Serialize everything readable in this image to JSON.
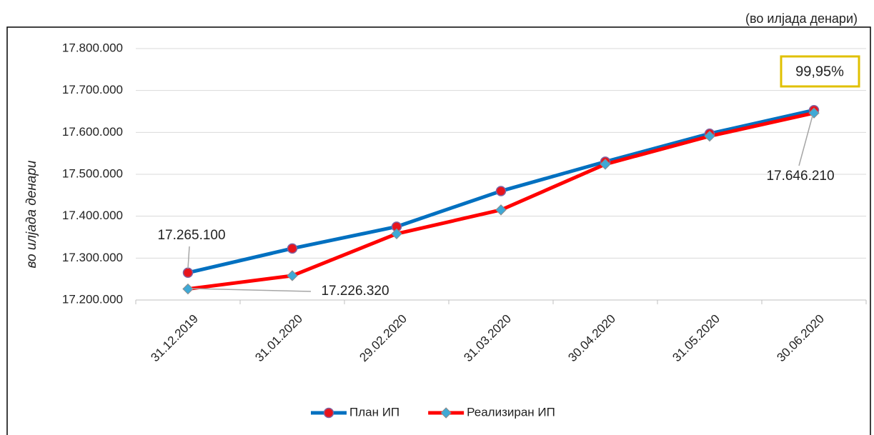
{
  "chart_data": {
    "type": "line",
    "unit_note": "(во илјада денари)",
    "y_axis_label": "во илјада денари",
    "annotation": "99,95%",
    "categories": [
      "31.12.2019",
      "31.01.2020",
      "29.02.2020",
      "31.03.2020",
      "30.04.2020",
      "31.05.2020",
      "30.06.2020"
    ],
    "series": [
      {
        "name": "План ИП",
        "color": "#0070c0",
        "marker": "circle",
        "marker_color": "#e8141c",
        "values": [
          17265100,
          17323000,
          17375000,
          17460000,
          17530000,
          17597000,
          17653000
        ],
        "value_labels": [
          "17.265.100",
          null,
          null,
          null,
          null,
          null,
          null
        ]
      },
      {
        "name": "Реализиран ИП",
        "color": "#ff0000",
        "marker": "diamond",
        "marker_color": "#3fa9d6",
        "values": [
          17226320,
          17258000,
          17358000,
          17415000,
          17524000,
          17591000,
          17646210
        ],
        "value_labels": [
          "17.226.320",
          null,
          null,
          null,
          null,
          null,
          "17.646.210"
        ]
      }
    ],
    "ylim": [
      17200000,
      17800000
    ],
    "yticks": [
      {
        "value": 17200000,
        "label": "17.200.000"
      },
      {
        "value": 17300000,
        "label": "17.300.000"
      },
      {
        "value": 17400000,
        "label": "17.400.000"
      },
      {
        "value": 17500000,
        "label": "17.500.000"
      },
      {
        "value": 17600000,
        "label": "17.600.000"
      },
      {
        "value": 17700000,
        "label": "17.700.000"
      },
      {
        "value": 17800000,
        "label": "17.800.000"
      }
    ],
    "grid": true,
    "legend": "bottom"
  }
}
